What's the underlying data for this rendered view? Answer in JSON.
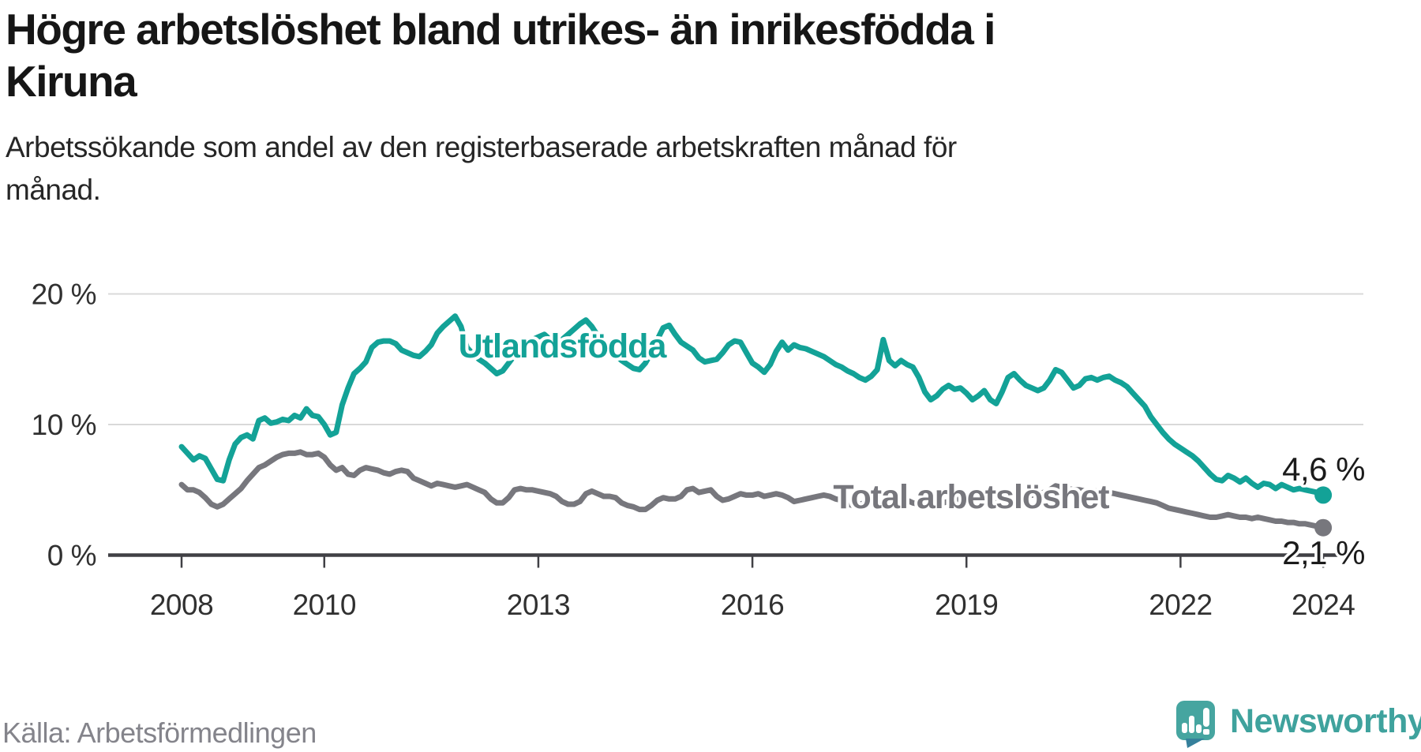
{
  "header": {
    "title_line1": "Högre arbetslöshet bland utrikes- än inrikesfödda i",
    "title_line2": "Kiruna",
    "subtitle_line1": "Arbetssökande som andel av den registerbaserade arbetskraften månad för",
    "subtitle_line2": "månad."
  },
  "footer": {
    "source": "Källa: Arbetsförmedlingen",
    "brand": "Newsworthy"
  },
  "colors": {
    "teal_series": "#13a297",
    "gray_series": "#77777d",
    "gridline": "#d9d9d9",
    "axis": "#404045",
    "logo_bubble": "#46a5a0",
    "logo_tail": "#35809b",
    "brand_text": "#3fa29d"
  },
  "chart_data": {
    "type": "line",
    "title": "Högre arbetslöshet bland utrikes- än inrikesfödda i Kiruna",
    "subtitle": "Arbetssökande som andel av den registerbaserade arbetskraften månad för månad.",
    "frequency": "monthly",
    "x_start": "2008-01",
    "x_end": "2024-01",
    "ylim": [
      0,
      20
    ],
    "grid": "horizontal",
    "y_ticks": [
      {
        "value": 0,
        "label": "0 %"
      },
      {
        "value": 10,
        "label": "10 %"
      },
      {
        "value": 20,
        "label": "20 %"
      }
    ],
    "x_ticks": [
      {
        "year": 2008,
        "label": "2008"
      },
      {
        "year": 2010,
        "label": "2010"
      },
      {
        "year": 2013,
        "label": "2013"
      },
      {
        "year": 2016,
        "label": "2016"
      },
      {
        "year": 2019,
        "label": "2019"
      },
      {
        "year": 2022,
        "label": "2022"
      },
      {
        "year": 2024,
        "label": "2024"
      }
    ],
    "series": [
      {
        "name": "Utlandsfödda",
        "color": "#13a297",
        "end_value": 4.6,
        "end_label": "4,6 %",
        "values": [
          8.3,
          7.8,
          7.3,
          7.6,
          7.4,
          6.6,
          5.8,
          5.7,
          7.3,
          8.5,
          9.0,
          9.2,
          8.9,
          10.3,
          10.5,
          10.1,
          10.2,
          10.4,
          10.3,
          10.7,
          10.5,
          11.2,
          10.7,
          10.6,
          10.0,
          9.2,
          9.4,
          11.5,
          12.8,
          13.9,
          14.3,
          14.8,
          15.9,
          16.3,
          16.4,
          16.4,
          16.2,
          15.7,
          15.5,
          15.3,
          15.2,
          15.6,
          16.1,
          17.0,
          17.5,
          17.9,
          18.3,
          17.5,
          15.9,
          15.4,
          15.0,
          14.7,
          14.3,
          13.9,
          14.1,
          14.7,
          15.3,
          15.9,
          16.3,
          16.5,
          16.7,
          16.9,
          16.5,
          16.2,
          16.5,
          16.9,
          17.3,
          17.7,
          18.0,
          17.5,
          16.8,
          16.1,
          15.7,
          15.3,
          14.9,
          14.6,
          14.3,
          14.2,
          14.7,
          15.5,
          16.5,
          17.4,
          17.6,
          16.9,
          16.3,
          16.0,
          15.7,
          15.1,
          14.8,
          14.9,
          15.0,
          15.5,
          16.1,
          16.4,
          16.3,
          15.5,
          14.7,
          14.4,
          14.0,
          14.6,
          15.6,
          16.3,
          15.7,
          16.1,
          15.9,
          15.8,
          15.6,
          15.4,
          15.2,
          14.9,
          14.6,
          14.4,
          14.1,
          13.9,
          13.6,
          13.4,
          13.7,
          14.2,
          16.5,
          14.9,
          14.5,
          14.9,
          14.6,
          14.4,
          13.6,
          12.5,
          11.9,
          12.2,
          12.7,
          13.0,
          12.7,
          12.8,
          12.4,
          11.9,
          12.2,
          12.6,
          11.9,
          11.6,
          12.5,
          13.6,
          13.9,
          13.4,
          13.0,
          12.8,
          12.6,
          12.8,
          13.4,
          14.2,
          14.0,
          13.4,
          12.8,
          13.0,
          13.5,
          13.6,
          13.4,
          13.6,
          13.7,
          13.4,
          13.2,
          12.9,
          12.4,
          11.9,
          11.4,
          10.6,
          10.0,
          9.4,
          8.9,
          8.5,
          8.2,
          7.9,
          7.6,
          7.2,
          6.7,
          6.2,
          5.8,
          5.7,
          6.1,
          5.9,
          5.6,
          5.9,
          5.5,
          5.2,
          5.5,
          5.4,
          5.1,
          5.4,
          5.2,
          5.0,
          5.1,
          5.0,
          4.9,
          4.8,
          4.6
        ]
      },
      {
        "name": "Total arbetslöshet",
        "color": "#77777d",
        "end_value": 2.1,
        "end_label": "2,1 %",
        "values": [
          5.4,
          5.0,
          5.0,
          4.8,
          4.4,
          3.9,
          3.7,
          3.9,
          4.3,
          4.7,
          5.1,
          5.7,
          6.2,
          6.7,
          6.9,
          7.2,
          7.5,
          7.7,
          7.8,
          7.8,
          7.9,
          7.7,
          7.7,
          7.8,
          7.5,
          6.9,
          6.5,
          6.7,
          6.2,
          6.1,
          6.5,
          6.7,
          6.6,
          6.5,
          6.3,
          6.2,
          6.4,
          6.5,
          6.4,
          5.9,
          5.7,
          5.5,
          5.3,
          5.5,
          5.4,
          5.3,
          5.2,
          5.3,
          5.4,
          5.2,
          5.0,
          4.8,
          4.3,
          4.0,
          4.0,
          4.4,
          5.0,
          5.1,
          5.0,
          5.0,
          4.9,
          4.8,
          4.7,
          4.5,
          4.1,
          3.9,
          3.9,
          4.1,
          4.7,
          4.9,
          4.7,
          4.5,
          4.5,
          4.4,
          4.0,
          3.8,
          3.7,
          3.5,
          3.5,
          3.8,
          4.2,
          4.4,
          4.3,
          4.3,
          4.5,
          5.0,
          5.1,
          4.8,
          4.9,
          5.0,
          4.5,
          4.2,
          4.3,
          4.5,
          4.7,
          4.6,
          4.6,
          4.7,
          4.5,
          4.6,
          4.7,
          4.6,
          4.4,
          4.1,
          4.2,
          4.3,
          4.4,
          4.5,
          4.6,
          4.5,
          4.3,
          4.2,
          3.9,
          3.8,
          3.9,
          4.0,
          4.2,
          4.4,
          4.5,
          4.5,
          4.4,
          4.3,
          4.2,
          4.0,
          3.9,
          3.8,
          3.8,
          3.9,
          4.0,
          4.1,
          4.2,
          4.3,
          4.3,
          4.2,
          4.1,
          4.0,
          4.0,
          4.1,
          4.2,
          4.3,
          4.4,
          4.5,
          4.5,
          4.6,
          4.7,
          4.8,
          5.0,
          5.3,
          5.2,
          5.1,
          5.0,
          5.0,
          4.9,
          4.9,
          4.9,
          4.8,
          4.8,
          4.7,
          4.6,
          4.5,
          4.4,
          4.3,
          4.2,
          4.1,
          4.0,
          3.8,
          3.6,
          3.5,
          3.4,
          3.3,
          3.2,
          3.1,
          3.0,
          2.9,
          2.9,
          3.0,
          3.1,
          3.0,
          2.9,
          2.9,
          2.8,
          2.9,
          2.8,
          2.7,
          2.6,
          2.6,
          2.5,
          2.5,
          2.4,
          2.4,
          2.3,
          2.2,
          2.1
        ]
      }
    ]
  }
}
